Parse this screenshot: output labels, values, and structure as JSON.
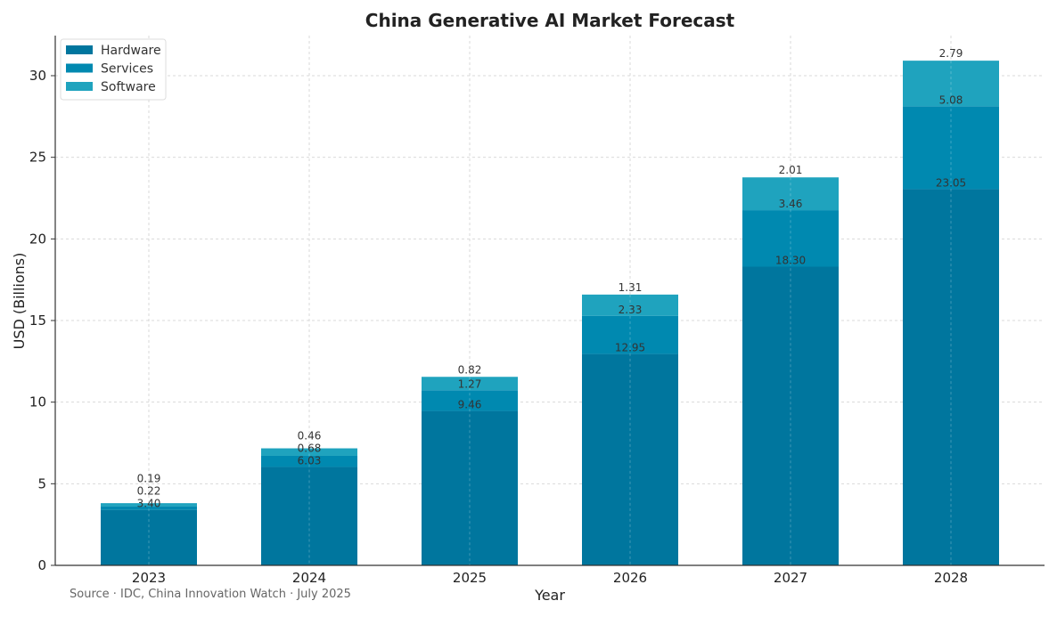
{
  "chart_data": {
    "type": "bar",
    "stacked": true,
    "title": "China Generative AI Market Forecast",
    "xlabel": "Year",
    "ylabel": "USD (Billions)",
    "categories": [
      "2023",
      "2024",
      "2025",
      "2026",
      "2027",
      "2028"
    ],
    "series": [
      {
        "name": "Hardware",
        "color": "#00769e",
        "values": [
          3.4,
          6.03,
          9.46,
          12.95,
          18.3,
          23.05
        ],
        "labels": [
          "3.40",
          "6.03",
          "9.46",
          "12.95",
          "18.30",
          "23.05"
        ]
      },
      {
        "name": "Services",
        "color": "#0089b0",
        "values": [
          0.22,
          0.68,
          1.27,
          2.33,
          3.46,
          5.08
        ],
        "labels": [
          "0.22",
          "0.68",
          "1.27",
          "2.33",
          "3.46",
          "5.08"
        ]
      },
      {
        "name": "Software",
        "color": "#1fa3be",
        "values": [
          0.19,
          0.46,
          0.82,
          1.31,
          2.01,
          2.79
        ],
        "labels": [
          "0.19",
          "0.46",
          "0.82",
          "1.31",
          "2.01",
          "2.79"
        ]
      }
    ],
    "ylim": [
      0,
      32.5
    ],
    "yticks": [
      "0",
      "5",
      "10",
      "15",
      "20",
      "25",
      "30"
    ],
    "grid": true,
    "legend": "top-left",
    "source": "Source · IDC, China Innovation Watch · July 2025"
  }
}
